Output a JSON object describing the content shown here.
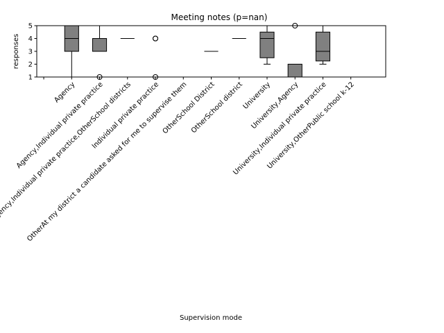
{
  "chart_data": {
    "type": "box",
    "title": "Meeting notes (p=nan)",
    "xlabel": "Supervision mode",
    "ylabel": "responses",
    "ylim": [
      1,
      5
    ],
    "yticks": [
      1,
      2,
      3,
      4,
      5
    ],
    "grid": false,
    "box_color": "#808080",
    "categories": [
      "",
      "Agency",
      "Agency,Individual private practice",
      "Agency,Individual private practice,OtherSchool districts",
      "Individual private practice",
      "OtherAt my district a candidate asked for me to supervise them",
      "OtherSchool District",
      "OtherSchool district",
      "University",
      "University,Agency",
      "University,Individual private practice",
      "University,OtherPublic school k-12"
    ],
    "boxes": [
      null,
      {
        "whislo": 1,
        "q1": 3,
        "med": 4,
        "q3": 5,
        "whishi": 5,
        "fliers": []
      },
      {
        "whislo": 3,
        "q1": 3,
        "med": 3,
        "q3": 4,
        "whishi": 5,
        "fliers": [
          1
        ]
      },
      {
        "whislo": 4,
        "q1": 4,
        "med": 4,
        "q3": 4,
        "whishi": 4,
        "fliers": []
      },
      {
        "whislo": 5,
        "q1": 5,
        "med": 5,
        "q3": 5,
        "whishi": 5,
        "fliers": [
          4,
          4,
          1
        ]
      },
      {
        "whislo": 5,
        "q1": 5,
        "med": 5,
        "q3": 5,
        "whishi": 5,
        "fliers": []
      },
      {
        "whislo": 3,
        "q1": 3,
        "med": 3,
        "q3": 3,
        "whishi": 3,
        "fliers": []
      },
      {
        "whislo": 4,
        "q1": 4,
        "med": 4,
        "q3": 4,
        "whishi": 4,
        "fliers": []
      },
      {
        "whislo": 2,
        "q1": 2.5,
        "med": 4,
        "q3": 4.5,
        "whishi": 5,
        "fliers": []
      },
      {
        "whislo": 1,
        "q1": 1,
        "med": 2,
        "q3": 2,
        "whishi": 2,
        "fliers": [
          5
        ]
      },
      {
        "whislo": 2,
        "q1": 2.25,
        "med": 3,
        "q3": 4.5,
        "whishi": 5,
        "fliers": []
      },
      {
        "whislo": 5,
        "q1": 5,
        "med": 5,
        "q3": 5,
        "whishi": 5,
        "fliers": []
      }
    ]
  }
}
